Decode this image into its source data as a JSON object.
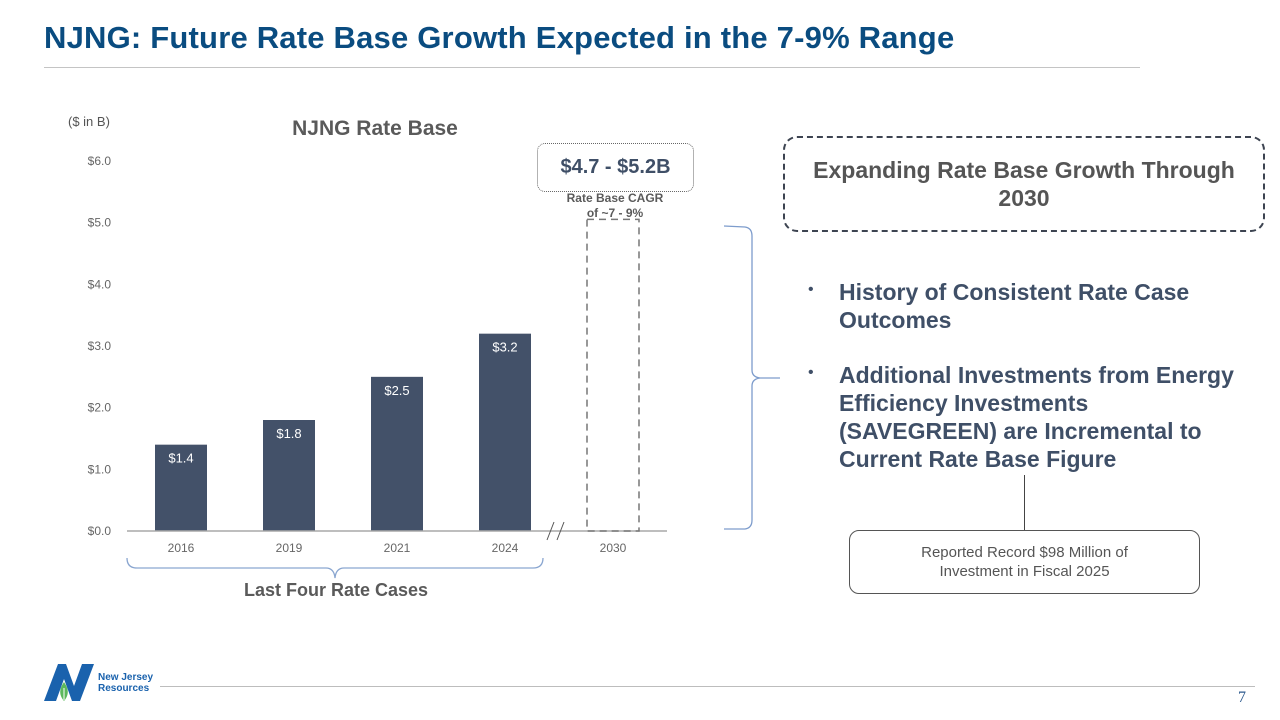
{
  "slide": {
    "title": "NJNG: Future Rate Base Growth Expected in the 7-9% Range",
    "page_number": "7"
  },
  "chart_data": {
    "type": "bar",
    "title": "NJNG Rate Base",
    "ylabel": "($ in B)",
    "xlabel": "",
    "ylim": [
      0,
      6
    ],
    "yticks": [
      "$0.0",
      "$1.0",
      "$2.0",
      "$3.0",
      "$4.0",
      "$5.0",
      "$6.0"
    ],
    "ytick_values": [
      0,
      1,
      2,
      3,
      4,
      5,
      6
    ],
    "grid": false,
    "categories": [
      "2016",
      "2019",
      "2021",
      "2024",
      "2030"
    ],
    "values": [
      1.4,
      1.8,
      2.5,
      3.2,
      null
    ],
    "data_labels": [
      "$1.4",
      "$1.8",
      "$2.5",
      "$3.2",
      ""
    ],
    "projection": {
      "category": "2030",
      "range_low": 4.7,
      "range_high": 5.2,
      "label": "$4.7 - $5.2B",
      "cagr_note_line1": "Rate Base CAGR",
      "cagr_note_line2": "of ~7 - 9%"
    },
    "axis_break_between": [
      "2024",
      "2030"
    ],
    "bracket_annotation": "Last Four Rate Cases",
    "bar_color": "#435169"
  },
  "callouts": {
    "headline": "Expanding Rate Base Growth Through 2030",
    "bullets": [
      "History of Consistent Rate Case Outcomes",
      "Additional Investments from Energy Efficiency Investments (SAVEGREEN) are Incremental to Current Rate Base Figure"
    ],
    "bullet_symbol": "•",
    "record_note": "Reported Record $98 Million of Investment in Fiscal 2025"
  },
  "footer": {
    "logo_line1": "New Jersey",
    "logo_line2": "Resources"
  },
  "colors": {
    "title": "#0a4c80",
    "bar": "#435169",
    "bracket": "#7d9ccc",
    "logo_blue": "#1a62ad",
    "logo_green": "#5cb85c"
  }
}
